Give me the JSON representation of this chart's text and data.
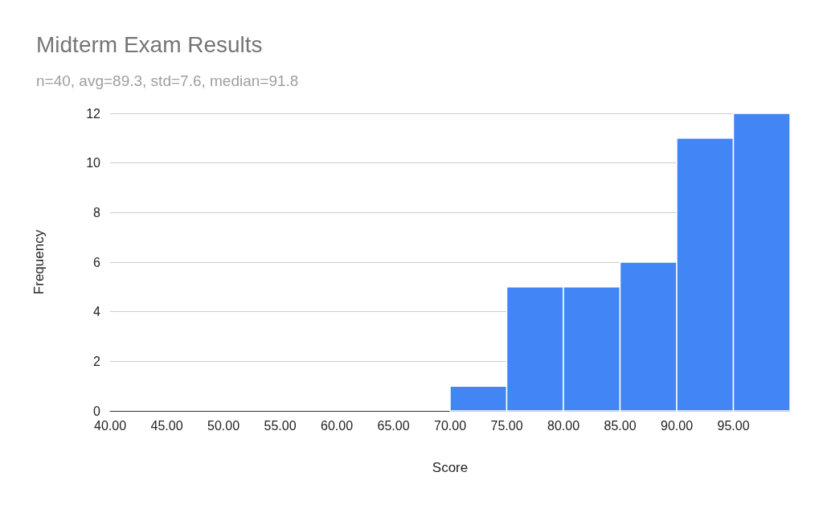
{
  "chart_data": {
    "type": "histogram",
    "title": "Midterm Exam Results",
    "subtitle": "n=40, avg=89.3, std=7.6, median=91.8",
    "xlabel": "Score",
    "ylabel": "Frequency",
    "bins": [
      40,
      45,
      50,
      55,
      60,
      65,
      70,
      75,
      80,
      85,
      90,
      95,
      100
    ],
    "values": [
      0,
      0,
      0,
      0,
      0,
      0,
      1,
      5,
      5,
      6,
      11,
      12
    ],
    "color": "#4285f4",
    "xlim": [
      40,
      100
    ],
    "xticks": [
      {
        "value": 40,
        "label": "40.00"
      },
      {
        "value": 45,
        "label": "45.00"
      },
      {
        "value": 50,
        "label": "50.00"
      },
      {
        "value": 55,
        "label": "55.00"
      },
      {
        "value": 60,
        "label": "60.00"
      },
      {
        "value": 65,
        "label": "65.00"
      },
      {
        "value": 70,
        "label": "70.00"
      },
      {
        "value": 75,
        "label": "75.00"
      },
      {
        "value": 80,
        "label": "80.00"
      },
      {
        "value": 85,
        "label": "85.00"
      },
      {
        "value": 90,
        "label": "90.00"
      },
      {
        "value": 95,
        "label": "95.00"
      }
    ],
    "ylim": [
      0,
      12
    ],
    "yticks": [
      0,
      2,
      4,
      6,
      8,
      10,
      12
    ],
    "grid": "y"
  }
}
